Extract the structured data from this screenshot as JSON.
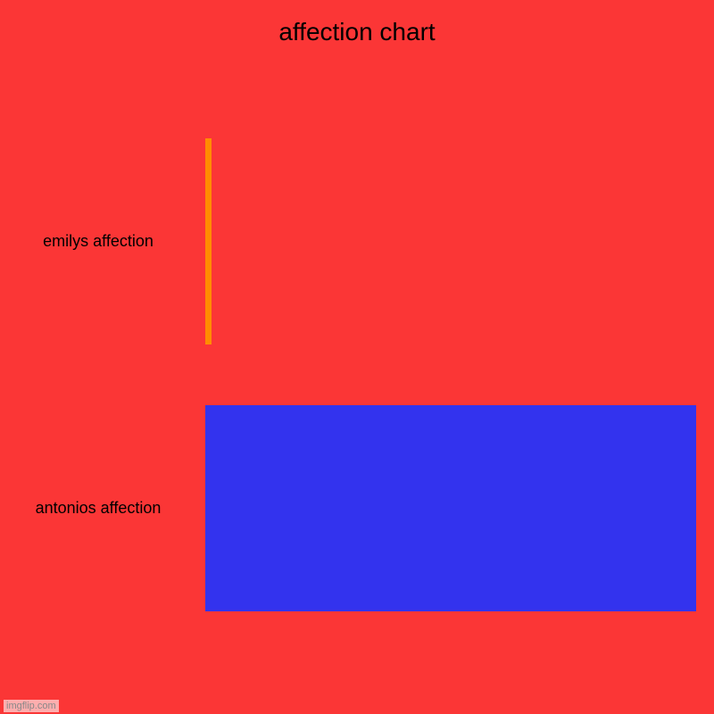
{
  "chart": {
    "type": "horizontal-bar",
    "title": "affection chart",
    "title_fontsize": 28,
    "background_color": "#fb3636",
    "text_color": "#000000",
    "label_fontsize": 18,
    "max_value": 100,
    "bars": [
      {
        "label": "emilys affection",
        "value": 1.2,
        "color": "#ff8c00",
        "top_pct": 11,
        "height_pct": 34
      },
      {
        "label": "antonios affection",
        "value": 100,
        "color": "#3333ee",
        "top_pct": 55,
        "height_pct": 34
      }
    ]
  },
  "watermark": "imgflip.com"
}
